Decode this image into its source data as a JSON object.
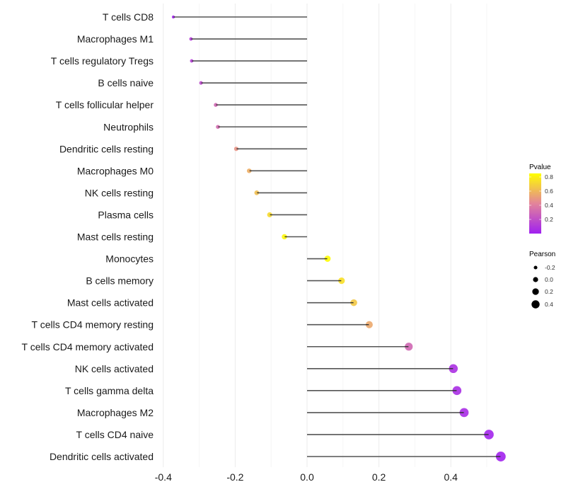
{
  "chart_data": {
    "type": "lollipop",
    "title": "",
    "xlabel": "",
    "ylabel": "",
    "xlim": [
      -0.42,
      0.57
    ],
    "x_ticks": [
      -0.4,
      -0.2,
      0.0,
      0.2,
      0.4
    ],
    "x_tick_labels": [
      "-0.4",
      "-0.2",
      "0.0",
      "0.2",
      "0.4"
    ],
    "grid": true,
    "categories": [
      "T cells CD8",
      "Macrophages M1",
      "T cells regulatory  Tregs ",
      "B cells naive",
      "T cells follicular helper",
      "Neutrophils",
      "Dendritic cells resting",
      "Macrophages M0",
      "NK cells resting",
      "Plasma cells",
      "Mast cells resting",
      "Monocytes",
      "B cells memory",
      "Mast cells activated",
      "T cells CD4 memory resting",
      "T cells CD4 memory activated",
      "NK cells activated",
      "T cells gamma delta",
      "Macrophages M2",
      "T cells CD4 naive",
      "Dendritic cells activated"
    ],
    "values": [
      -0.372,
      -0.323,
      -0.321,
      -0.295,
      -0.254,
      -0.248,
      -0.197,
      -0.161,
      -0.14,
      -0.104,
      -0.063,
      0.057,
      0.096,
      0.13,
      0.173,
      0.283,
      0.407,
      0.417,
      0.437,
      0.506,
      0.539
    ],
    "pvalues": [
      0.02,
      0.12,
      0.13,
      0.18,
      0.3,
      0.32,
      0.48,
      0.57,
      0.63,
      0.72,
      0.82,
      0.84,
      0.74,
      0.66,
      0.55,
      0.3,
      0.07,
      0.06,
      0.05,
      0.02,
      0.01
    ],
    "legend": {
      "placement": "right",
      "color": {
        "title": "Pvalue",
        "labels": [
          "0.8",
          "0.6",
          "0.4",
          "0.2"
        ],
        "values": [
          0.8,
          0.6,
          0.4,
          0.2
        ],
        "range": [
          0.0,
          0.85
        ],
        "low_color": "#a020f0",
        "mid_color": "#e3849a",
        "high_color": "#ffff00"
      },
      "size": {
        "title": "Pearson",
        "labels": [
          "-0.2",
          "0.0",
          "0.2",
          "0.4"
        ],
        "values": [
          -0.2,
          0.0,
          0.2,
          0.4
        ]
      }
    },
    "segment_color": "#555555"
  }
}
